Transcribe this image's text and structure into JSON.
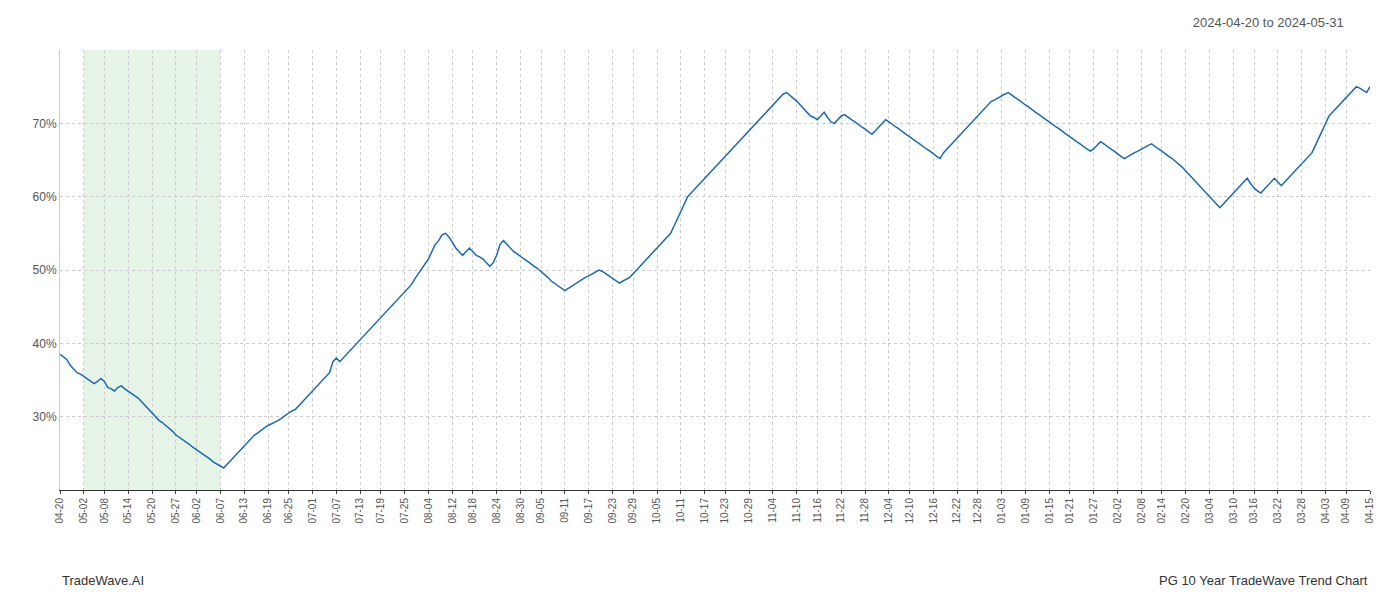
{
  "chart_data": {
    "type": "line",
    "title": "2024-04-20 to 2024-05-31",
    "annotations": [
      "TradeWave.AI",
      "PG 10 Year TradeWave Trend Chart"
    ],
    "color": "#1a6ab0",
    "grid": true,
    "ylim": [
      20,
      80
    ],
    "yticks": [
      {
        "value": 30,
        "label": "30%"
      },
      {
        "value": 40,
        "label": "40%"
      },
      {
        "value": 50,
        "label": "50%"
      },
      {
        "value": 60,
        "label": "60%"
      },
      {
        "value": 70,
        "label": "70%"
      }
    ],
    "shaded_range": {
      "from": "05-02",
      "to": "06-07",
      "color": "#c8e6c9"
    },
    "categories": [
      "04-20",
      null,
      null,
      null,
      null,
      null,
      null,
      "05-02",
      null,
      null,
      null,
      null,
      null,
      "05-08",
      null,
      null,
      null,
      null,
      null,
      null,
      "05-14",
      null,
      null,
      null,
      null,
      null,
      null,
      "05-20",
      null,
      null,
      null,
      null,
      null,
      null,
      "05-27",
      null,
      null,
      null,
      null,
      null,
      "06-02",
      null,
      null,
      null,
      null,
      null,
      null,
      "06-07",
      null,
      null,
      null,
      null,
      null,
      null,
      "06-13",
      null,
      null,
      null,
      null,
      null,
      null,
      "06-19",
      null,
      null,
      null,
      null,
      null,
      "06-25",
      null,
      null,
      null,
      null,
      null,
      null,
      "07-01",
      null,
      null,
      null,
      null,
      null,
      null,
      "07-07",
      null,
      null,
      null,
      null,
      null,
      null,
      "07-13",
      null,
      null,
      null,
      null,
      null,
      "07-19",
      null,
      null,
      null,
      null,
      null,
      null,
      "07-25",
      null,
      null,
      null,
      null,
      null,
      null,
      "08-04",
      null,
      null,
      null,
      null,
      null,
      null,
      "08-12",
      null,
      null,
      null,
      null,
      null,
      "08-18",
      null,
      null,
      null,
      null,
      null,
      null,
      "08-24",
      null,
      null,
      null,
      null,
      null,
      null,
      "08-30",
      null,
      null,
      null,
      null,
      null,
      "09-05",
      null,
      null,
      null,
      null,
      null,
      null,
      "09-11",
      null,
      null,
      null,
      null,
      null,
      null,
      "09-17",
      null,
      null,
      null,
      null,
      null,
      null,
      "09-23",
      null,
      null,
      null,
      null,
      null,
      "09-29",
      null,
      null,
      null,
      null,
      null,
      null,
      "10-05",
      null,
      null,
      null,
      null,
      null,
      null,
      "10-11",
      null,
      null,
      null,
      null,
      null,
      null,
      "10-17",
      null,
      null,
      null,
      null,
      null,
      "10-23",
      null,
      null,
      null,
      null,
      null,
      null,
      "10-29",
      null,
      null,
      null,
      null,
      null,
      null,
      "11-04",
      null,
      null,
      null,
      null,
      null,
      null,
      "11-10",
      null,
      null,
      null,
      null,
      null,
      "11-16",
      null,
      null,
      null,
      null,
      null,
      null,
      "11-22",
      null,
      null,
      null,
      null,
      null,
      null,
      "11-28",
      null,
      null,
      null,
      null,
      null,
      null,
      "12-04",
      null,
      null,
      null,
      null,
      null,
      "12-10",
      null,
      null,
      null,
      null,
      null,
      null,
      "12-16",
      null,
      null,
      null,
      null,
      null,
      null,
      "12-22",
      null,
      null,
      null,
      null,
      null,
      "12-28",
      null,
      null,
      null,
      null,
      null,
      null,
      "01-03",
      null,
      null,
      null,
      null,
      null,
      null,
      "01-09",
      null,
      null,
      null,
      null,
      null,
      null,
      "01-15",
      null,
      null,
      null,
      null,
      null,
      "01-21",
      null,
      null,
      null,
      null,
      null,
      null,
      "01-27",
      null,
      null,
      null,
      null,
      null,
      null,
      "02-02",
      null,
      null,
      null,
      null,
      null,
      null,
      "02-08",
      null,
      null,
      null,
      null,
      null,
      "02-14",
      null,
      null,
      null,
      null,
      null,
      null,
      "02-20",
      null,
      null,
      null,
      null,
      null,
      null,
      "03-04",
      null,
      null,
      null,
      null,
      null,
      null,
      "03-10",
      null,
      null,
      null,
      null,
      null,
      "03-16",
      null,
      null,
      null,
      null,
      null,
      null,
      "03-22",
      null,
      null,
      null,
      null,
      null,
      null,
      "03-28",
      null,
      null,
      null,
      null,
      null,
      null,
      "04-03",
      null,
      null,
      null,
      null,
      null,
      "04-09",
      null,
      null,
      null,
      null,
      null,
      null,
      "04-15"
    ],
    "values": [
      38.5,
      38.2,
      37.8,
      37.0,
      36.5,
      36.0,
      35.8,
      35.5,
      35.2,
      34.8,
      34.5,
      34.8,
      35.2,
      34.8,
      34.0,
      33.8,
      33.5,
      34.0,
      34.2,
      33.8,
      33.5,
      33.2,
      32.8,
      32.5,
      32.0,
      31.5,
      31.0,
      30.5,
      30.0,
      29.5,
      29.2,
      28.8,
      28.5,
      28.0,
      27.5,
      27.2,
      26.8,
      26.5,
      26.2,
      25.8,
      25.5,
      25.2,
      24.8,
      24.5,
      24.2,
      23.8,
      23.5,
      23.2,
      23.0,
      23.5,
      24.0,
      24.5,
      25.0,
      25.5,
      26.0,
      26.5,
      27.0,
      27.5,
      27.8,
      28.2,
      28.5,
      28.8,
      29.0,
      29.2,
      29.5,
      29.8,
      30.2,
      30.5,
      30.8,
      31.0,
      31.5,
      32.0,
      32.5,
      33.0,
      33.5,
      34.0,
      34.5,
      35.0,
      35.5,
      36.0,
      37.5,
      38.0,
      37.5,
      38.0,
      38.5,
      39.0,
      39.5,
      40.0,
      40.5,
      41.0,
      41.5,
      42.0,
      42.5,
      43.0,
      43.5,
      44.0,
      44.5,
      45.0,
      45.5,
      46.0,
      46.5,
      47.0,
      47.5,
      48.0,
      48.8,
      49.5,
      50.2,
      50.8,
      51.5,
      52.5,
      53.5,
      54.0,
      54.8,
      55.0,
      54.5,
      53.8,
      53.0,
      52.5,
      52.0,
      52.5,
      53.0,
      52.5,
      52.0,
      51.8,
      51.5,
      51.0,
      50.5,
      51.0,
      52.0,
      53.5,
      54.0,
      53.5,
      53.0,
      52.5,
      52.2,
      51.8,
      51.5,
      51.2,
      50.8,
      50.5,
      50.2,
      49.8,
      49.5,
      49.0,
      48.5,
      48.2,
      47.8,
      47.5,
      47.2,
      47.5,
      47.8,
      48.2,
      48.5,
      48.8,
      49.0,
      49.2,
      49.5,
      49.8,
      50.0,
      49.8,
      49.5,
      49.2,
      48.8,
      48.5,
      48.2,
      48.5,
      48.8,
      49.0,
      49.5,
      50.0,
      50.5,
      51.0,
      51.5,
      52.0,
      52.5,
      53.0,
      53.5,
      54.0,
      54.5,
      55.0,
      56.0,
      57.0,
      58.0,
      59.0,
      60.0,
      60.5,
      61.0,
      61.5,
      62.0,
      62.5,
      63.0,
      63.5,
      64.0,
      64.5,
      65.0,
      65.5,
      66.0,
      66.5,
      67.0,
      67.5,
      68.0,
      68.5,
      69.0,
      69.5,
      70.0,
      70.5,
      71.0,
      71.5,
      72.0,
      72.5,
      73.0,
      73.5,
      74.0,
      74.2,
      73.8,
      73.5,
      73.0,
      72.5,
      72.0,
      71.5,
      71.0,
      70.8,
      70.5,
      71.0,
      71.5,
      70.8,
      70.2,
      70.0,
      70.5,
      71.0,
      71.2,
      70.8,
      70.5,
      70.2,
      69.8,
      69.5,
      69.2,
      68.8,
      68.5,
      69.0,
      69.5,
      70.0,
      70.5,
      70.2,
      69.8,
      69.5,
      69.2,
      68.8,
      68.5,
      68.2,
      67.8,
      67.5,
      67.2,
      66.8,
      66.5,
      66.2,
      65.8,
      65.5,
      65.2,
      66.0,
      66.5,
      67.0,
      67.5,
      68.0,
      68.5,
      69.0,
      69.5,
      70.0,
      70.5,
      71.0,
      71.5,
      72.0,
      72.5,
      73.0,
      73.2,
      73.5,
      73.8,
      74.0,
      74.2,
      73.8,
      73.5,
      73.2,
      72.8,
      72.5,
      72.2,
      71.8,
      71.5,
      71.2,
      70.8,
      70.5,
      70.2,
      69.8,
      69.5,
      69.2,
      68.8,
      68.5,
      68.2,
      67.8,
      67.5,
      67.2,
      66.8,
      66.5,
      66.2,
      66.5,
      67.0,
      67.5,
      67.2,
      66.8,
      66.5,
      66.2,
      65.8,
      65.5,
      65.2,
      65.5,
      65.8,
      66.0,
      66.2,
      66.5,
      66.8,
      67.0,
      67.2,
      66.8,
      66.5,
      66.2,
      65.8,
      65.5,
      65.2,
      64.8,
      64.5,
      64.0,
      63.5,
      63.0,
      62.5,
      62.0,
      61.5,
      61.0,
      60.5,
      60.0,
      59.5,
      59.0,
      58.5,
      59.0,
      59.5,
      60.0,
      60.5,
      61.0,
      61.5,
      62.0,
      62.5,
      61.8,
      61.2,
      60.8,
      60.5,
      61.0,
      61.5,
      62.0,
      62.5,
      62.0,
      61.5,
      62.0,
      62.5,
      63.0,
      63.5,
      64.0,
      64.5,
      65.0,
      65.5,
      66.0,
      67.0,
      68.0,
      69.0,
      70.0,
      71.0,
      71.5,
      72.0,
      72.5,
      73.0,
      73.5,
      74.0,
      74.5,
      75.0,
      74.8,
      74.5,
      74.2,
      75.0
    ]
  }
}
